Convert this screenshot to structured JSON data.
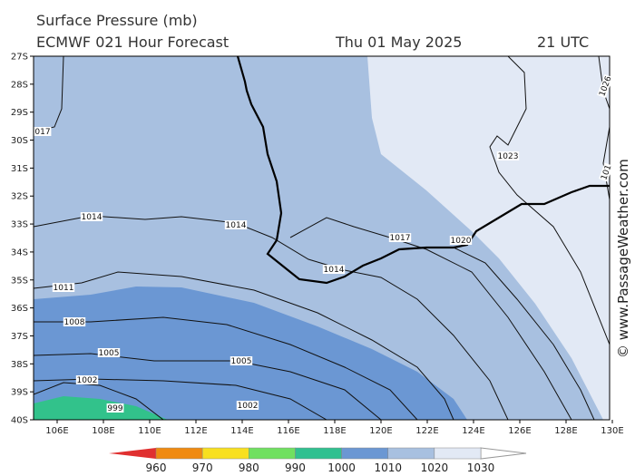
{
  "header": {
    "title": "Surface Pressure (mb)",
    "model": "ECMWF 021 Hour Forecast",
    "date": "Thu 01 May 2025",
    "time": "21 UTC"
  },
  "map": {
    "lat_labels": [
      "27S",
      "28S",
      "29S",
      "30S",
      "31S",
      "32S",
      "33S",
      "34S",
      "35S",
      "36S",
      "37S",
      "38S",
      "39S",
      "40S"
    ],
    "lon_labels": [
      "106E",
      "108E",
      "110E",
      "112E",
      "114E",
      "116E",
      "118E",
      "120E",
      "122E",
      "124E",
      "126E",
      "128E",
      "130E"
    ],
    "contour_labels": [
      "017",
      "1014",
      "1014",
      "1017",
      "1020",
      "1014",
      "1011",
      "1008",
      "1005",
      "1005",
      "1002",
      "1002",
      "999",
      "1023",
      "1026",
      "101"
    ]
  },
  "colorbar": {
    "labels": [
      960,
      970,
      980,
      990,
      1000,
      1010,
      1020,
      1030
    ]
  },
  "watermark": "© www.PassageWeather.com"
}
